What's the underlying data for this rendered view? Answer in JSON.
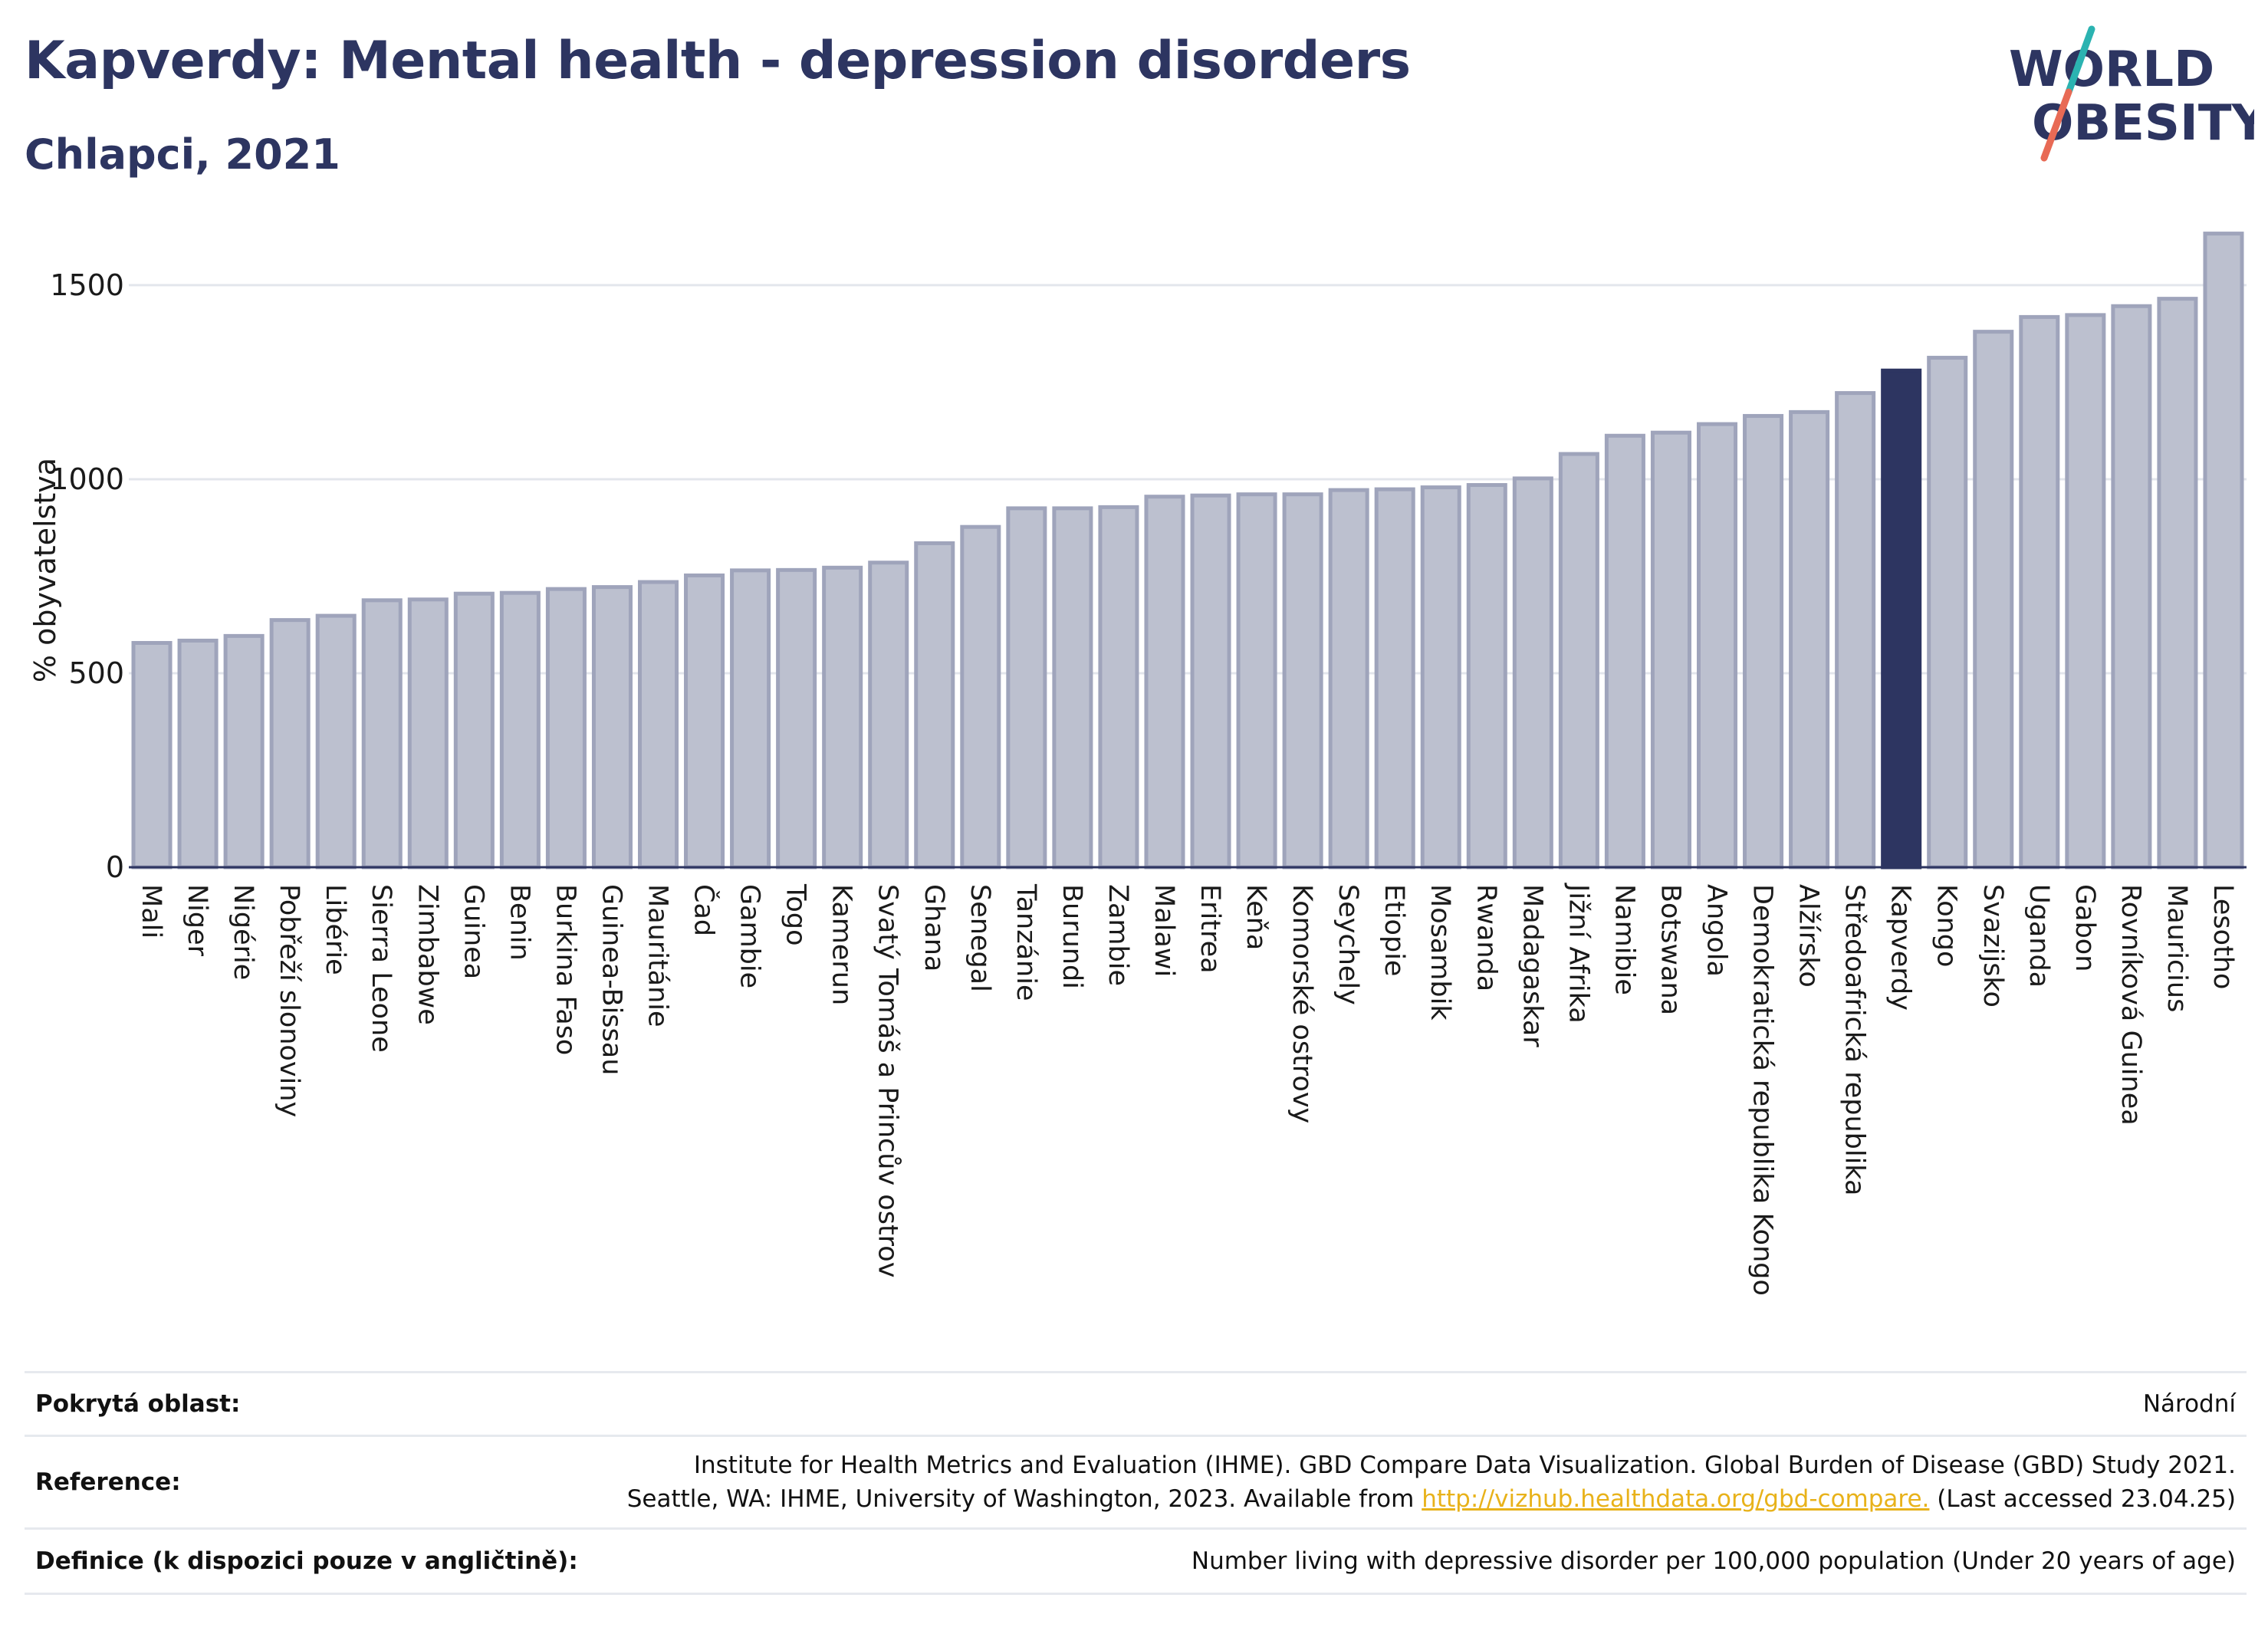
{
  "header": {
    "title": "Kapverdy: Mental health - depression disorders",
    "subtitle": "Chlapci, 2021",
    "logo_line1": "WORLD",
    "logo_line2": "OBESITY"
  },
  "chart_data": {
    "type": "bar",
    "ylabel": "% obyvatelstva",
    "ylim": [
      0,
      1650
    ],
    "yticks": [
      0,
      500,
      1000,
      1500
    ],
    "grid": true,
    "highlight": "Kapverdy",
    "colors": {
      "bar": "#bcc0cf",
      "bar_border": "#9fa4bb",
      "highlight": "#2d3561",
      "grid": "#e3e6ec",
      "axis": "#2d3561"
    },
    "categories": [
      "Mali",
      "Niger",
      "Nigérie",
      "Pobřeží slonoviny",
      "Libérie",
      "Sierra Leone",
      "Zimbabwe",
      "Guinea",
      "Benin",
      "Burkina Faso",
      "Guinea-Bissau",
      "Mauritánie",
      "Čad",
      "Gambie",
      "Togo",
      "Kamerun",
      "Svatý Tomáš a Princův ostrov",
      "Ghana",
      "Senegal",
      "Tanzánie",
      "Burundi",
      "Zambie",
      "Malawi",
      "Eritrea",
      "Keňa",
      "Komorské ostrovy",
      "Seychely",
      "Etiopie",
      "Mosambik",
      "Rwanda",
      "Madagaskar",
      "Jižní Afrika",
      "Namibie",
      "Botswana",
      "Angola",
      "Demokratická republika Kongo",
      "Alžírsko",
      "Středoafrická republika",
      "Kapverdy",
      "Kongo",
      "Svazijsko",
      "Uganda",
      "Gabon",
      "Rovníková Guinea",
      "Mauricius",
      "Lesotho"
    ],
    "values": [
      578,
      584,
      596,
      637,
      648,
      688,
      690,
      705,
      707,
      717,
      722,
      735,
      752,
      765,
      766,
      772,
      785,
      835,
      877,
      925,
      925,
      928,
      955,
      958,
      961,
      961,
      972,
      974,
      979,
      985,
      1002,
      1065,
      1112,
      1120,
      1142,
      1163,
      1173,
      1222,
      1280,
      1313,
      1380,
      1418,
      1423,
      1446,
      1465,
      1633
    ]
  },
  "info": {
    "coverage_label": "Pokrytá oblast:",
    "coverage_value": "Národní",
    "reference_label": "Reference:",
    "reference_line1": "Institute for Health Metrics and Evaluation (IHME). GBD Compare Data Visualization. Global Burden of Disease (GBD) Study 2021.",
    "reference_line2_pre": "Seattle, WA: IHME, University of Washington, 2023. Available from ",
    "reference_link": "http://vizhub.healthdata.org/gbd-compare.",
    "reference_line2_post": " (Last accessed 23.04.25)",
    "definition_label": "Definice (k dispozici pouze v angličtině):",
    "definition_value": "Number living with depressive disorder per 100,000 population (Under 20 years of age)"
  }
}
